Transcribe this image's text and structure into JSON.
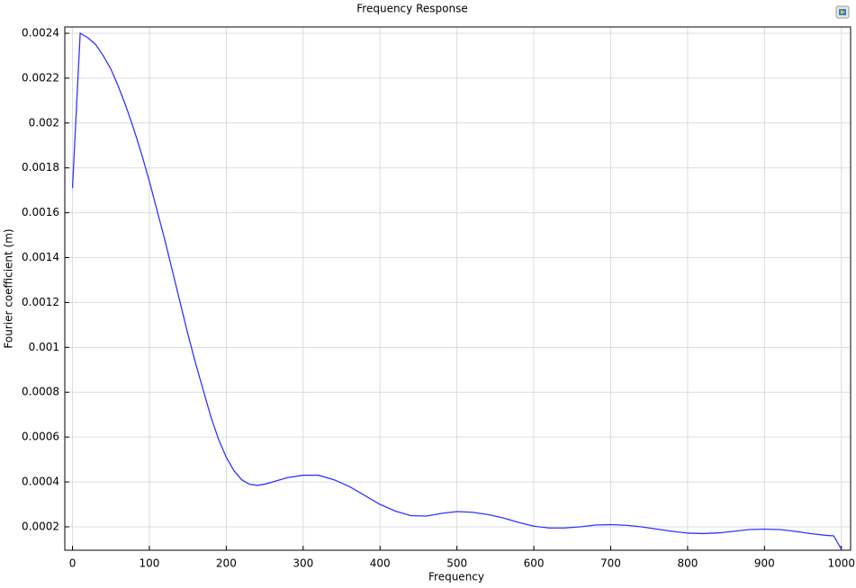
{
  "chart_data": {
    "type": "line",
    "title": "Frequency Response",
    "x_label": "Frequency",
    "y_label": "Fourier coefficient (m)",
    "x": [
      0,
      10,
      20,
      30,
      40,
      50,
      60,
      70,
      80,
      90,
      100,
      110,
      120,
      130,
      140,
      150,
      160,
      170,
      180,
      190,
      200,
      210,
      220,
      230,
      240,
      250,
      260,
      280,
      300,
      320,
      340,
      360,
      380,
      400,
      420,
      440,
      460,
      480,
      500,
      520,
      540,
      560,
      580,
      600,
      620,
      640,
      660,
      680,
      700,
      720,
      740,
      760,
      780,
      800,
      820,
      840,
      860,
      880,
      900,
      920,
      940,
      960,
      980,
      990,
      1000
    ],
    "series": [
      {
        "name": "Fourier coefficient",
        "color": "#3333ff",
        "values": [
          0.00171,
          0.0024,
          0.00238,
          0.00235,
          0.0023,
          0.00224,
          0.00216,
          0.00207,
          0.00197,
          0.00186,
          0.00174,
          0.00161,
          0.00148,
          0.00134,
          0.0012,
          0.00106,
          0.00093,
          0.00081,
          0.00069,
          0.00059,
          0.00051,
          0.00045,
          0.00041,
          0.00039,
          0.000385,
          0.00039,
          0.0004,
          0.00042,
          0.00043,
          0.00043,
          0.00041,
          0.00038,
          0.00034,
          0.0003,
          0.00027,
          0.00025,
          0.000248,
          0.00026,
          0.000268,
          0.000265,
          0.000255,
          0.00024,
          0.00022,
          0.000203,
          0.000195,
          0.000195,
          0.0002,
          0.000208,
          0.00021,
          0.000207,
          0.0002,
          0.00019,
          0.00018,
          0.000172,
          0.00017,
          0.000173,
          0.00018,
          0.000188,
          0.00019,
          0.000188,
          0.00018,
          0.00017,
          0.000162,
          0.00016,
          0.0001
        ]
      }
    ],
    "xlim": [
      -10,
      1012
    ],
    "ylim": [
      9.57e-05,
      0.002428
    ],
    "xticks": [
      0,
      100,
      200,
      300,
      400,
      500,
      600,
      700,
      800,
      900,
      1000
    ],
    "yticks": [
      0.0002,
      0.0004,
      0.0006,
      0.0008,
      0.001,
      0.0012,
      0.0014,
      0.0016,
      0.0018,
      0.002,
      0.0022,
      0.0024
    ],
    "grid": true
  }
}
